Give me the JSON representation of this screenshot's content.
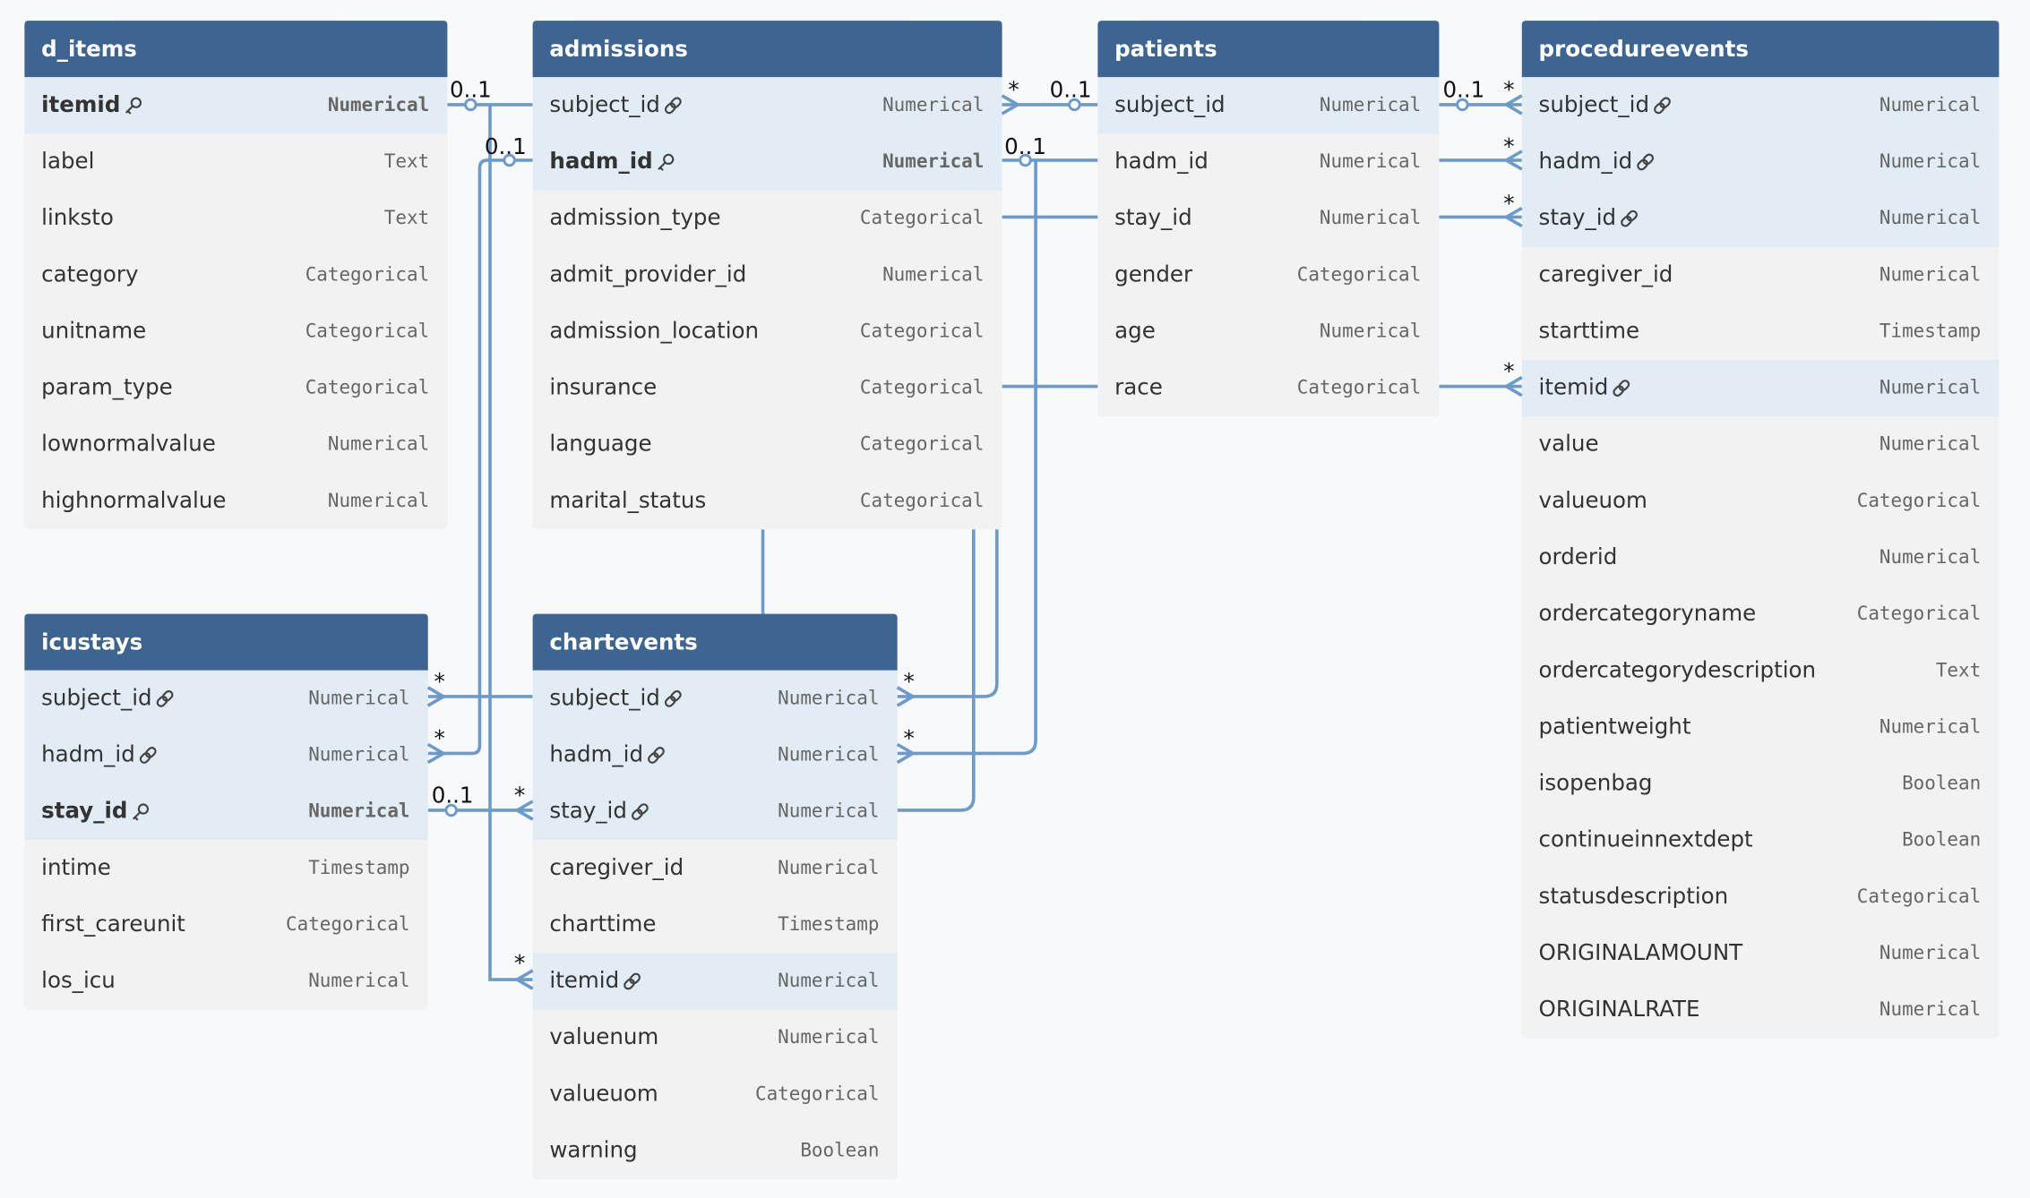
{
  "tables": [
    {
      "name": "d_items",
      "columns": [
        {
          "name": "itemid",
          "type": "Numerical",
          "pk": true
        },
        {
          "name": "label",
          "type": "Text"
        },
        {
          "name": "linksto",
          "type": "Text"
        },
        {
          "name": "category",
          "type": "Categorical"
        },
        {
          "name": "unitname",
          "type": "Categorical"
        },
        {
          "name": "param_type",
          "type": "Categorical"
        },
        {
          "name": "lownormalvalue",
          "type": "Numerical"
        },
        {
          "name": "highnormalvalue",
          "type": "Numerical"
        }
      ]
    },
    {
      "name": "admissions",
      "columns": [
        {
          "name": "subject_id",
          "type": "Numerical",
          "fk": true
        },
        {
          "name": "hadm_id",
          "type": "Numerical",
          "pk": true
        },
        {
          "name": "admission_type",
          "type": "Categorical"
        },
        {
          "name": "admit_provider_id",
          "type": "Numerical"
        },
        {
          "name": "admission_location",
          "type": "Categorical"
        },
        {
          "name": "insurance",
          "type": "Categorical"
        },
        {
          "name": "language",
          "type": "Categorical"
        },
        {
          "name": "marital_status",
          "type": "Categorical"
        }
      ]
    },
    {
      "name": "patients",
      "columns": [
        {
          "name": "subject_id",
          "type": "Numerical",
          "highlight": true
        },
        {
          "name": "hadm_id",
          "type": "Numerical"
        },
        {
          "name": "stay_id",
          "type": "Numerical"
        },
        {
          "name": "gender",
          "type": "Categorical"
        },
        {
          "name": "age",
          "type": "Numerical"
        },
        {
          "name": "race",
          "type": "Categorical"
        }
      ]
    },
    {
      "name": "procedureevents",
      "columns": [
        {
          "name": "subject_id",
          "type": "Numerical",
          "fk": true
        },
        {
          "name": "hadm_id",
          "type": "Numerical",
          "fk": true
        },
        {
          "name": "stay_id",
          "type": "Numerical",
          "fk": true
        },
        {
          "name": "caregiver_id",
          "type": "Numerical"
        },
        {
          "name": "starttime",
          "type": "Timestamp"
        },
        {
          "name": "itemid",
          "type": "Numerical",
          "fk": true
        },
        {
          "name": "value",
          "type": "Numerical"
        },
        {
          "name": "valueuom",
          "type": "Categorical"
        },
        {
          "name": "orderid",
          "type": "Numerical"
        },
        {
          "name": "ordercategoryname",
          "type": "Categorical"
        },
        {
          "name": "ordercategorydescription",
          "type": "Text"
        },
        {
          "name": "patientweight",
          "type": "Numerical"
        },
        {
          "name": "isopenbag",
          "type": "Boolean"
        },
        {
          "name": "continueinnextdept",
          "type": "Boolean"
        },
        {
          "name": "statusdescription",
          "type": "Categorical"
        },
        {
          "name": "ORIGINALAMOUNT",
          "type": "Numerical"
        },
        {
          "name": "ORIGINALRATE",
          "type": "Numerical"
        }
      ]
    },
    {
      "name": "icustays",
      "columns": [
        {
          "name": "subject_id",
          "type": "Numerical",
          "fk": true
        },
        {
          "name": "hadm_id",
          "type": "Numerical",
          "fk": true
        },
        {
          "name": "stay_id",
          "type": "Numerical",
          "pk": true
        },
        {
          "name": "intime",
          "type": "Timestamp"
        },
        {
          "name": "first_careunit",
          "type": "Categorical"
        },
        {
          "name": "los_icu",
          "type": "Numerical"
        }
      ]
    },
    {
      "name": "chartevents",
      "columns": [
        {
          "name": "subject_id",
          "type": "Numerical",
          "fk": true
        },
        {
          "name": "hadm_id",
          "type": "Numerical",
          "fk": true
        },
        {
          "name": "stay_id",
          "type": "Numerical",
          "fk": true
        },
        {
          "name": "caregiver_id",
          "type": "Numerical"
        },
        {
          "name": "charttime",
          "type": "Timestamp"
        },
        {
          "name": "itemid",
          "type": "Numerical",
          "fk": true
        },
        {
          "name": "valuenum",
          "type": "Numerical"
        },
        {
          "name": "valueuom",
          "type": "Categorical"
        },
        {
          "name": "warning",
          "type": "Boolean"
        }
      ]
    }
  ],
  "cardinalities": [
    "0..1",
    "0..1",
    "*",
    "*",
    "0..1",
    "*",
    "*",
    "*",
    "0..1",
    "0..1",
    "*",
    "*",
    "0..1",
    "*",
    "*",
    "*",
    "*"
  ]
}
